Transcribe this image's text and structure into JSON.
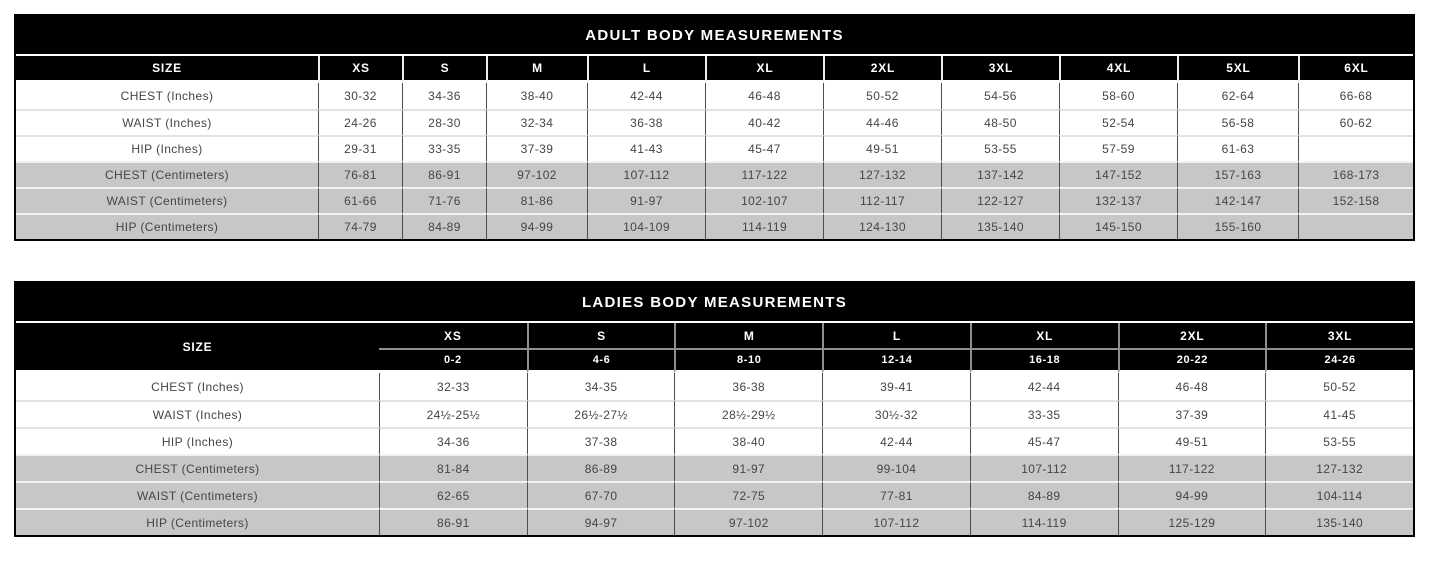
{
  "colors": {
    "header_bg": "#000000",
    "header_fg": "#ffffff",
    "shaded_row_bg": "#c7c7c7"
  },
  "adult_table": {
    "title": "ADULT BODY MEASUREMENTS",
    "size_header": "SIZE",
    "columns": [
      "XS",
      "S",
      "M",
      "L",
      "XL",
      "2XL",
      "3XL",
      "4XL",
      "5XL",
      "6XL"
    ],
    "rows": [
      {
        "label": "CHEST (Inches)",
        "values": [
          "30-32",
          "34-36",
          "38-40",
          "42-44",
          "46-48",
          "50-52",
          "54-56",
          "58-60",
          "62-64",
          "66-68"
        ]
      },
      {
        "label": "WAIST (Inches)",
        "values": [
          "24-26",
          "28-30",
          "32-34",
          "36-38",
          "40-42",
          "44-46",
          "48-50",
          "52-54",
          "56-58",
          "60-62"
        ]
      },
      {
        "label": "HIP (Inches)",
        "values": [
          "29-31",
          "33-35",
          "37-39",
          "41-43",
          "45-47",
          "49-51",
          "53-55",
          "57-59",
          "61-63",
          ""
        ]
      },
      {
        "label": "CHEST (Centimeters)",
        "values": [
          "76-81",
          "86-91",
          "97-102",
          "107-112",
          "117-122",
          "127-132",
          "137-142",
          "147-152",
          "157-163",
          "168-173"
        ]
      },
      {
        "label": "WAIST (Centimeters)",
        "values": [
          "61-66",
          "71-76",
          "81-86",
          "91-97",
          "102-107",
          "112-117",
          "122-127",
          "132-137",
          "142-147",
          "152-158"
        ]
      },
      {
        "label": "HIP (Centimeters)",
        "values": [
          "74-79",
          "84-89",
          "94-99",
          "104-109",
          "114-119",
          "124-130",
          "135-140",
          "145-150",
          "155-160",
          ""
        ]
      }
    ]
  },
  "ladies_table": {
    "title": "LADIES BODY MEASUREMENTS",
    "size_header": "SIZE",
    "columns": [
      "XS",
      "S",
      "M",
      "L",
      "XL",
      "2XL",
      "3XL"
    ],
    "numeric_sizes": [
      "0-2",
      "4-6",
      "8-10",
      "12-14",
      "16-18",
      "20-22",
      "24-26"
    ],
    "rows": [
      {
        "label": "CHEST (Inches)",
        "values": [
          "32-33",
          "34-35",
          "36-38",
          "39-41",
          "42-44",
          "46-48",
          "50-52"
        ]
      },
      {
        "label": "WAIST (Inches)",
        "values": [
          "24½-25½",
          "26½-27½",
          "28½-29½",
          "30½-32",
          "33-35",
          "37-39",
          "41-45"
        ]
      },
      {
        "label": "HIP (Inches)",
        "values": [
          "34-36",
          "37-38",
          "38-40",
          "42-44",
          "45-47",
          "49-51",
          "53-55"
        ]
      },
      {
        "label": "CHEST (Centimeters)",
        "values": [
          "81-84",
          "86-89",
          "91-97",
          "99-104",
          "107-112",
          "117-122",
          "127-132"
        ]
      },
      {
        "label": "WAIST (Centimeters)",
        "values": [
          "62-65",
          "67-70",
          "72-75",
          "77-81",
          "84-89",
          "94-99",
          "104-114"
        ]
      },
      {
        "label": "HIP (Centimeters)",
        "values": [
          "86-91",
          "94-97",
          "97-102",
          "107-112",
          "114-119",
          "125-129",
          "135-140"
        ]
      }
    ]
  }
}
